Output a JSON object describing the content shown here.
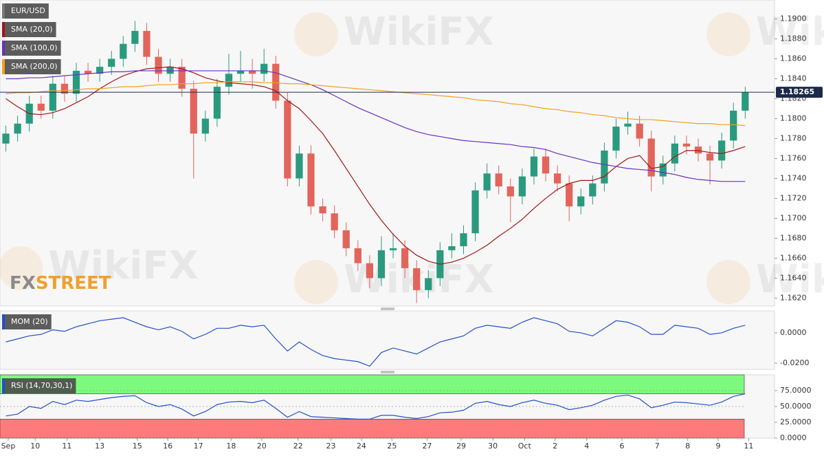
{
  "watermark": "WikiFX",
  "logo": {
    "fx": "FX",
    "street": "STREET"
  },
  "chart_data": [
    {
      "type": "candlestick",
      "symbol": "EUR/USD",
      "up_color": "#2a9a7e",
      "down_color": "#e2655c",
      "xlim": [
        -0.5,
        65.5
      ],
      "xticks": [
        {
          "value": 0.2,
          "label": "Sep"
        },
        {
          "value": 2.5,
          "label": "10"
        },
        {
          "value": 5.2,
          "label": "11"
        },
        {
          "value": 8,
          "label": "13"
        },
        {
          "value": 11.2,
          "label": "15"
        },
        {
          "value": 13.8,
          "label": "16"
        },
        {
          "value": 16.4,
          "label": "17"
        },
        {
          "value": 19.2,
          "label": "18"
        },
        {
          "value": 21.8,
          "label": "20"
        },
        {
          "value": 24.9,
          "label": "22"
        },
        {
          "value": 27.7,
          "label": "23"
        },
        {
          "value": 30.3,
          "label": "24"
        },
        {
          "value": 32.9,
          "label": "25"
        },
        {
          "value": 35.9,
          "label": "27"
        },
        {
          "value": 38.8,
          "label": "29"
        },
        {
          "value": 41.5,
          "label": "30"
        },
        {
          "value": 44.2,
          "label": "Oct"
        },
        {
          "value": 46.8,
          "label": "2"
        },
        {
          "value": 49.5,
          "label": "4"
        },
        {
          "value": 52.5,
          "label": "6"
        },
        {
          "value": 55.5,
          "label": "7"
        },
        {
          "value": 58.1,
          "label": "8"
        },
        {
          "value": 60.7,
          "label": "9"
        },
        {
          "value": 63.3,
          "label": "11"
        }
      ],
      "ylim": [
        1.1612,
        1.1919
      ],
      "yticks": [
        {
          "value": 1.162,
          "label": "1.1620"
        },
        {
          "value": 1.164,
          "label": "1.1640"
        },
        {
          "value": 1.166,
          "label": "1.1660"
        },
        {
          "value": 1.168,
          "label": "1.1680"
        },
        {
          "value": 1.17,
          "label": "1.1700"
        },
        {
          "value": 1.172,
          "label": "1.1720"
        },
        {
          "value": 1.174,
          "label": "1.1740"
        },
        {
          "value": 1.176,
          "label": "1.1760"
        },
        {
          "value": 1.178,
          "label": "1.1780"
        },
        {
          "value": 1.18,
          "label": "1.1800"
        },
        {
          "value": 1.182,
          "label": "1.1820"
        },
        {
          "value": 1.184,
          "label": "1.1840"
        },
        {
          "value": 1.186,
          "label": "1.1860"
        },
        {
          "value": 1.188,
          "label": "1.1880"
        },
        {
          "value": 1.19,
          "label": "1.1900"
        }
      ],
      "last_price": 1.18265,
      "open": [
        1.1775,
        1.1785,
        1.1795,
        1.1815,
        1.1808,
        1.1835,
        1.1825,
        1.1848,
        1.1845,
        1.1852,
        1.186,
        1.1875,
        1.1888,
        1.1862,
        1.1845,
        1.1852,
        1.183,
        1.1785,
        1.18,
        1.1832,
        1.1845,
        1.1848,
        1.1845,
        1.1855,
        1.1818,
        1.174,
        1.1765,
        1.1712,
        1.1705,
        1.1688,
        1.167,
        1.1655,
        1.164,
        1.1668,
        1.167,
        1.165,
        1.1628,
        1.164,
        1.1668,
        1.1672,
        1.1685,
        1.1728,
        1.1745,
        1.1732,
        1.1722,
        1.1742,
        1.1762,
        1.1745,
        1.1735,
        1.1712,
        1.1722,
        1.1735,
        1.1768,
        1.1792,
        1.1795,
        1.178,
        1.1742,
        1.1755,
        1.1775,
        1.1772,
        1.1765,
        1.1758,
        1.1778,
        1.1808
      ],
      "high": [
        1.1793,
        1.1803,
        1.1823,
        1.1823,
        1.1843,
        1.1843,
        1.1856,
        1.1856,
        1.186,
        1.1868,
        1.1883,
        1.1898,
        1.1896,
        1.187,
        1.186,
        1.186,
        1.1838,
        1.1808,
        1.184,
        1.1865,
        1.1868,
        1.186,
        1.187,
        1.1863,
        1.1826,
        1.1773,
        1.1773,
        1.172,
        1.1713,
        1.1696,
        1.1678,
        1.1663,
        1.1682,
        1.1685,
        1.1678,
        1.1658,
        1.1648,
        1.1676,
        1.1685,
        1.1693,
        1.1736,
        1.1755,
        1.1753,
        1.174,
        1.175,
        1.177,
        1.177,
        1.1753,
        1.1743,
        1.173,
        1.1743,
        1.1776,
        1.18,
        1.1807,
        1.1803,
        1.1788,
        1.1763,
        1.1783,
        1.1783,
        1.178,
        1.1773,
        1.1786,
        1.1816,
        1.1832
      ],
      "low": [
        1.1767,
        1.1777,
        1.1787,
        1.18,
        1.18,
        1.1817,
        1.1817,
        1.1837,
        1.1837,
        1.1844,
        1.1852,
        1.1867,
        1.1854,
        1.1837,
        1.1837,
        1.1822,
        1.174,
        1.1777,
        1.1792,
        1.1824,
        1.1837,
        1.183,
        1.1837,
        1.181,
        1.1732,
        1.1732,
        1.1704,
        1.1697,
        1.168,
        1.1662,
        1.1647,
        1.163,
        1.1632,
        1.166,
        1.164,
        1.1615,
        1.162,
        1.1632,
        1.166,
        1.1664,
        1.1677,
        1.172,
        1.1724,
        1.1696,
        1.1714,
        1.1734,
        1.1737,
        1.1727,
        1.1697,
        1.1704,
        1.1714,
        1.1727,
        1.176,
        1.1784,
        1.1772,
        1.1727,
        1.1734,
        1.1747,
        1.1764,
        1.1757,
        1.1734,
        1.175,
        1.177,
        1.18
      ],
      "close": [
        1.1785,
        1.1795,
        1.1815,
        1.1808,
        1.1835,
        1.1825,
        1.1848,
        1.1845,
        1.1852,
        1.186,
        1.1875,
        1.1888,
        1.1862,
        1.1845,
        1.1852,
        1.183,
        1.1785,
        1.18,
        1.1832,
        1.1845,
        1.1848,
        1.1845,
        1.1855,
        1.1818,
        1.174,
        1.1765,
        1.1712,
        1.1705,
        1.1688,
        1.167,
        1.1655,
        1.164,
        1.1668,
        1.167,
        1.165,
        1.1628,
        1.164,
        1.1668,
        1.1672,
        1.1685,
        1.1728,
        1.1745,
        1.1732,
        1.1722,
        1.1742,
        1.1762,
        1.1745,
        1.1735,
        1.1712,
        1.1722,
        1.1735,
        1.1768,
        1.1792,
        1.1795,
        1.178,
        1.1742,
        1.1755,
        1.1775,
        1.1772,
        1.1765,
        1.1758,
        1.1778,
        1.1808,
        1.18265
      ],
      "series": [
        {
          "name": "SMA (20,0)",
          "color": "#a31515",
          "values": [
            1.182,
            1.1812,
            1.1805,
            1.1804,
            1.1806,
            1.181,
            1.1816,
            1.1822,
            1.183,
            1.1837,
            1.1843,
            1.1847,
            1.185,
            1.1851,
            1.1852,
            1.185,
            1.1846,
            1.1841,
            1.1838,
            1.1836,
            1.1835,
            1.1834,
            1.1832,
            1.1828,
            1.1818,
            1.181,
            1.1798,
            1.1785,
            1.1768,
            1.175,
            1.1732,
            1.1714,
            1.1698,
            1.1684,
            1.1672,
            1.1663,
            1.1657,
            1.1654,
            1.1656,
            1.166,
            1.1666,
            1.1673,
            1.1682,
            1.169,
            1.1699,
            1.171,
            1.172,
            1.1729,
            1.1735,
            1.1738,
            1.1738,
            1.1742,
            1.1752,
            1.176,
            1.1763,
            1.175,
            1.1752,
            1.1762,
            1.1768,
            1.1768,
            1.1766,
            1.1765,
            1.1768,
            1.1772
          ]
        },
        {
          "name": "SMA (100,0)",
          "color": "#6a2fc0",
          "values": [
            1.184,
            1.184,
            1.1841,
            1.1841,
            1.1842,
            1.1843,
            1.1844,
            1.1845,
            1.1846,
            1.1847,
            1.1847,
            1.1848,
            1.1848,
            1.1848,
            1.1848,
            1.1848,
            1.1848,
            1.1848,
            1.1848,
            1.1848,
            1.1848,
            1.1848,
            1.1848,
            1.1846,
            1.1842,
            1.1838,
            1.1834,
            1.1829,
            1.1823,
            1.1817,
            1.1811,
            1.1806,
            1.1801,
            1.1796,
            1.1791,
            1.1787,
            1.1784,
            1.1782,
            1.178,
            1.1778,
            1.1777,
            1.1776,
            1.1775,
            1.1774,
            1.1772,
            1.1771,
            1.1769,
            1.1765,
            1.1762,
            1.1759,
            1.1756,
            1.1754,
            1.1752,
            1.175,
            1.1749,
            1.1748,
            1.1746,
            1.1744,
            1.1741,
            1.1739,
            1.1738,
            1.1737,
            1.1737,
            1.1737
          ]
        },
        {
          "name": "SMA (200,0)",
          "color": "#f0a020",
          "values": [
            1.1825,
            1.1826,
            1.1826,
            1.1827,
            1.1828,
            1.1828,
            1.1829,
            1.183,
            1.183,
            1.1831,
            1.1832,
            1.1832,
            1.1833,
            1.1834,
            1.1834,
            1.1835,
            1.1835,
            1.1836,
            1.1836,
            1.1837,
            1.1837,
            1.1837,
            1.1836,
            1.1836,
            1.1835,
            1.1835,
            1.1834,
            1.1833,
            1.1832,
            1.1831,
            1.183,
            1.1829,
            1.1828,
            1.1827,
            1.1826,
            1.1825,
            1.1824,
            1.1823,
            1.1822,
            1.1821,
            1.1819,
            1.1818,
            1.1817,
            1.1815,
            1.1814,
            1.1812,
            1.181,
            1.1809,
            1.1807,
            1.1806,
            1.1804,
            1.1803,
            1.1801,
            1.18,
            1.1799,
            1.1799,
            1.1798,
            1.1797,
            1.1796,
            1.1795,
            1.1795,
            1.1794,
            1.1794,
            1.1793
          ]
        }
      ]
    },
    {
      "type": "line",
      "ylim": [
        -0.0241,
        0.0145
      ],
      "yticks": [
        {
          "value": 0,
          "label": "0.0000"
        },
        {
          "value": -0.02,
          "label": "-0.0200"
        }
      ],
      "series": [
        {
          "name": "MOM (20)",
          "color": "#2350c8",
          "values": [
            -0.006,
            -0.004,
            -0.002,
            -0.001,
            0.002,
            0.001,
            0.004,
            0.006,
            0.008,
            0.009,
            0.01,
            0.007,
            0.004,
            0.002,
            0.004,
            0.001,
            -0.004,
            -0.001,
            0.003,
            0.003,
            0.005,
            0.004,
            0.005,
            -0.004,
            -0.012,
            -0.006,
            -0.011,
            -0.015,
            -0.017,
            -0.018,
            -0.019,
            -0.022,
            -0.013,
            -0.01,
            -0.012,
            -0.014,
            -0.01,
            -0.006,
            -0.004,
            -0.002,
            0.003,
            0.005,
            0.004,
            0.003,
            0.007,
            0.01,
            0.008,
            0.006,
            0.001,
            0,
            -0.002,
            0.003,
            0.008,
            0.007,
            0.004,
            -0.001,
            -0.001,
            0.005,
            0.004,
            0.003,
            -0.001,
            0,
            0.003,
            0.005
          ]
        }
      ]
    },
    {
      "type": "line",
      "ylim": [
        0,
        100
      ],
      "grid": true,
      "yticks": [
        {
          "value": 0,
          "label": "0.0000"
        },
        {
          "value": 25,
          "label": "25.0000"
        },
        {
          "value": 50,
          "label": "50.0000"
        },
        {
          "value": 75,
          "label": "75.0000"
        }
      ],
      "bands": [
        {
          "from": 70,
          "to": 100,
          "color": "#7dfa7d"
        },
        {
          "from": 0,
          "to": 30,
          "color": "#ff7b7b"
        }
      ],
      "series": [
        {
          "name": "RSI (14,70,30,1)",
          "color": "#2350c8",
          "values": [
            35,
            38,
            50,
            47,
            58,
            53,
            60,
            58,
            61,
            64,
            66,
            67,
            56,
            50,
            53,
            46,
            35,
            42,
            53,
            57,
            58,
            56,
            60,
            47,
            33,
            42,
            34,
            33,
            32,
            31,
            30,
            30,
            36,
            36,
            33,
            31,
            34,
            40,
            41,
            44,
            55,
            58,
            53,
            50,
            56,
            60,
            55,
            52,
            45,
            48,
            52,
            60,
            66,
            68,
            62,
            48,
            52,
            57,
            56,
            54,
            52,
            57,
            66,
            70
          ]
        }
      ]
    }
  ]
}
